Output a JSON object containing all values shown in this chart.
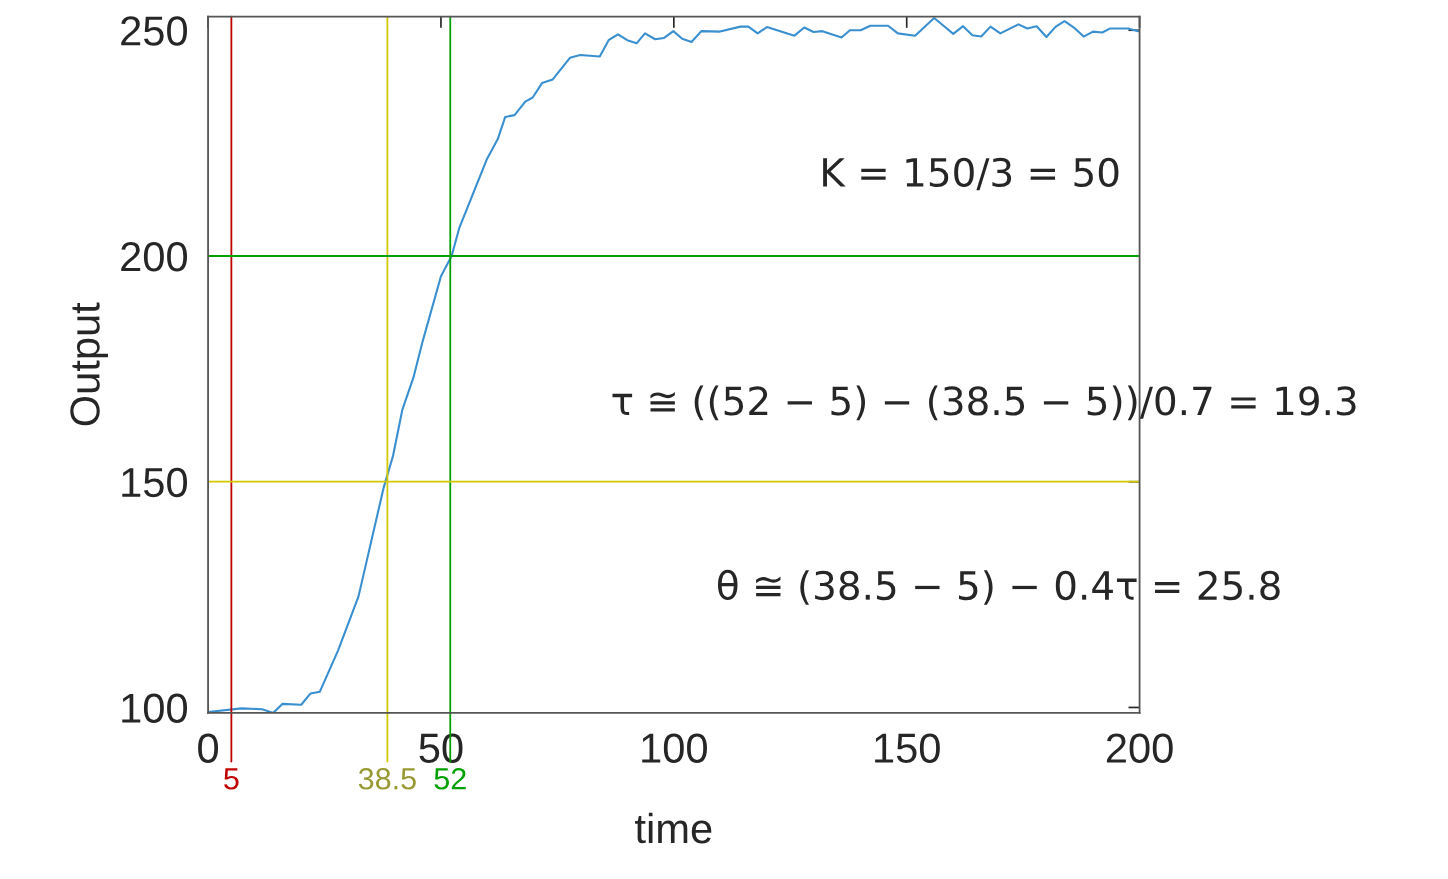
{
  "chart_data": {
    "type": "line",
    "xlabel": "time",
    "ylabel": "Output",
    "xlim": [
      0,
      200
    ],
    "ylim": [
      98.8,
      253
    ],
    "xticks": [
      0,
      50,
      100,
      150,
      200
    ],
    "yticks": [
      100,
      150,
      200,
      250
    ],
    "grid": false,
    "legend": false,
    "series": [
      {
        "color": "#3a8fd0",
        "x": [
          0,
          7.2,
          11.6,
          14,
          16,
          20,
          22,
          24,
          27.9,
          32.3,
          37.7,
          39.7,
          41.7,
          44.1,
          46.1,
          50,
          52.3,
          53.9,
          59.8,
          62.2,
          63.8,
          65.8,
          68.1,
          69.7,
          71.7,
          74,
          77.7,
          79.9,
          84.1,
          86,
          88,
          90,
          92,
          93.8,
          96,
          97.9,
          99.9,
          101.8,
          103.8,
          105.9,
          109.9,
          114.3,
          116,
          118,
          120,
          125.9,
          128,
          130,
          131.9,
          136,
          137.8,
          140.1,
          142.2,
          146,
          148.1,
          151.8,
          155.9,
          157.9,
          160,
          162.1,
          164.1,
          166,
          168,
          170.1,
          174,
          175.9,
          177.9,
          180,
          182,
          183.9,
          185.9,
          188,
          190,
          192,
          193.7,
          197.5,
          199.7
        ],
        "values": [
          99.0,
          99.8,
          99.6,
          98.8,
          100.8,
          100.6,
          103.1,
          103.5,
          112.6,
          124.6,
          148.7,
          155.7,
          165.9,
          173.1,
          181.2,
          195.5,
          200.0,
          206.1,
          221.3,
          225.9,
          230.8,
          231.2,
          234.2,
          235.1,
          238.3,
          239.1,
          243.9,
          244.5,
          244.2,
          247.8,
          249.1,
          247.8,
          247.1,
          249.3,
          248.0,
          248.3,
          249.8,
          248.1,
          247.4,
          249.8,
          249.7,
          250.8,
          250.8,
          249.3,
          250.7,
          248.8,
          250.6,
          249.6,
          249.8,
          248.4,
          250.0,
          250.0,
          251.0,
          251.0,
          249.3,
          248.8,
          252.7,
          251.0,
          249.2,
          250.9,
          248.9,
          248.6,
          250.8,
          249.3,
          251.3,
          250.4,
          250.9,
          248.5,
          250.8,
          252.0,
          250.6,
          248.6,
          249.7,
          249.5,
          250.4,
          250.4,
          249.8
        ]
      }
    ],
    "ref_lines": [
      {
        "axis": "x",
        "value": 5,
        "label": "5",
        "color": "#c00000"
      },
      {
        "axis": "x",
        "value": 38.5,
        "label": "38.5",
        "color": "#d4c800"
      },
      {
        "axis": "x",
        "value": 52,
        "label": "52",
        "color": "#00a000"
      },
      {
        "axis": "y",
        "value": 150,
        "color": "#d4c800"
      },
      {
        "axis": "y",
        "value": 200,
        "color": "#00a000"
      }
    ],
    "annotations": [
      "K = 150/3 = 50",
      "τ ≅ ((52 − 5) − (38.5 − 5))/0.7 = 19.3",
      "θ ≅ (38.5 − 5) − 0.4τ = 25.8"
    ]
  }
}
